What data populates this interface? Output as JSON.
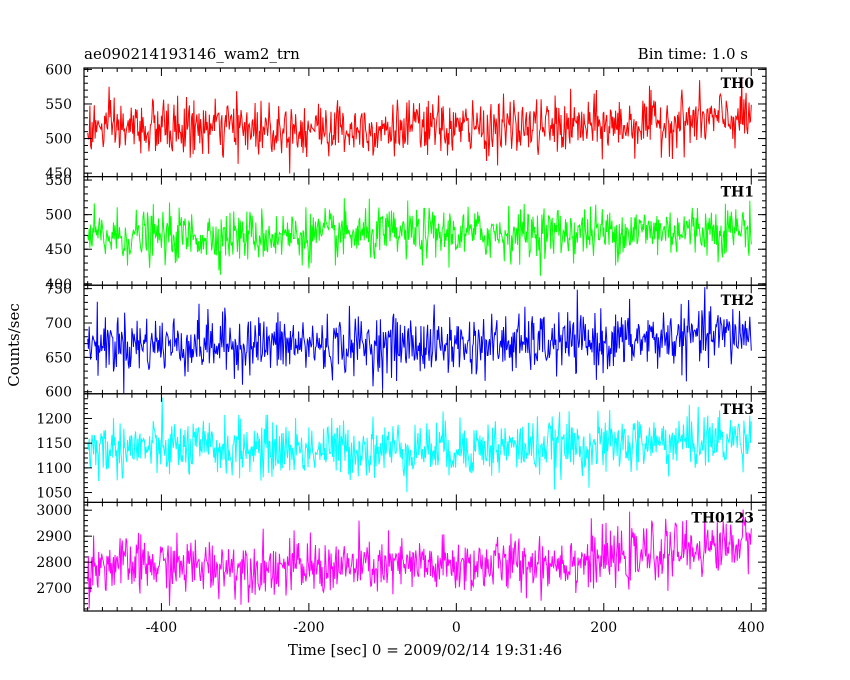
{
  "chart_data": {
    "type": "line",
    "title_left": "ae090214193146_wam2_trn",
    "title_right": "Bin time: 1.0 s",
    "xlabel": "Time [sec] 0 = 2009/02/14 19:31:46",
    "ylabel": "Counts/sec",
    "xlim": [
      -505,
      420
    ],
    "x_ticks": [
      -400,
      -200,
      0,
      200,
      400
    ],
    "x_range": [
      -500,
      400
    ],
    "panels": [
      {
        "name": "TH0",
        "color": "#ff0000",
        "ylim": [
          445,
          602
        ],
        "y_ticks": [
          450,
          500,
          550,
          600
        ],
        "trend": [
          [
            -500,
            515
          ],
          [
            -200,
            515
          ],
          [
            0,
            515
          ],
          [
            200,
            518
          ],
          [
            400,
            530
          ]
        ],
        "noise": 28
      },
      {
        "name": "TH1",
        "color": "#00ff00",
        "ylim": [
          398,
          555
        ],
        "y_ticks": [
          400,
          450,
          500,
          550
        ],
        "trend": [
          [
            -500,
            468
          ],
          [
            -200,
            470
          ],
          [
            0,
            472
          ],
          [
            200,
            475
          ],
          [
            400,
            480
          ]
        ],
        "noise": 26
      },
      {
        "name": "TH2",
        "color": "#0000ff",
        "ylim": [
          597,
          755
        ],
        "y_ticks": [
          600,
          650,
          700,
          750
        ],
        "trend": [
          [
            -500,
            670
          ],
          [
            -200,
            668
          ],
          [
            0,
            668
          ],
          [
            200,
            672
          ],
          [
            400,
            685
          ]
        ],
        "noise": 30
      },
      {
        "name": "TH3",
        "color": "#00ffff",
        "ylim": [
          1030,
          1250
        ],
        "y_ticks": [
          1050,
          1100,
          1150,
          1200
        ],
        "trend": [
          [
            -500,
            1140
          ],
          [
            -200,
            1138
          ],
          [
            0,
            1140
          ],
          [
            200,
            1145
          ],
          [
            400,
            1160
          ]
        ],
        "noise": 40
      },
      {
        "name": "TH0123",
        "color": "#ff00ff",
        "ylim": [
          2612,
          3030
        ],
        "y_ticks": [
          2700,
          2800,
          2900,
          3000
        ],
        "trend": [
          [
            -500,
            2790
          ],
          [
            -200,
            2780
          ],
          [
            0,
            2785
          ],
          [
            200,
            2810
          ],
          [
            400,
            2880
          ]
        ],
        "noise": 75
      }
    ]
  }
}
